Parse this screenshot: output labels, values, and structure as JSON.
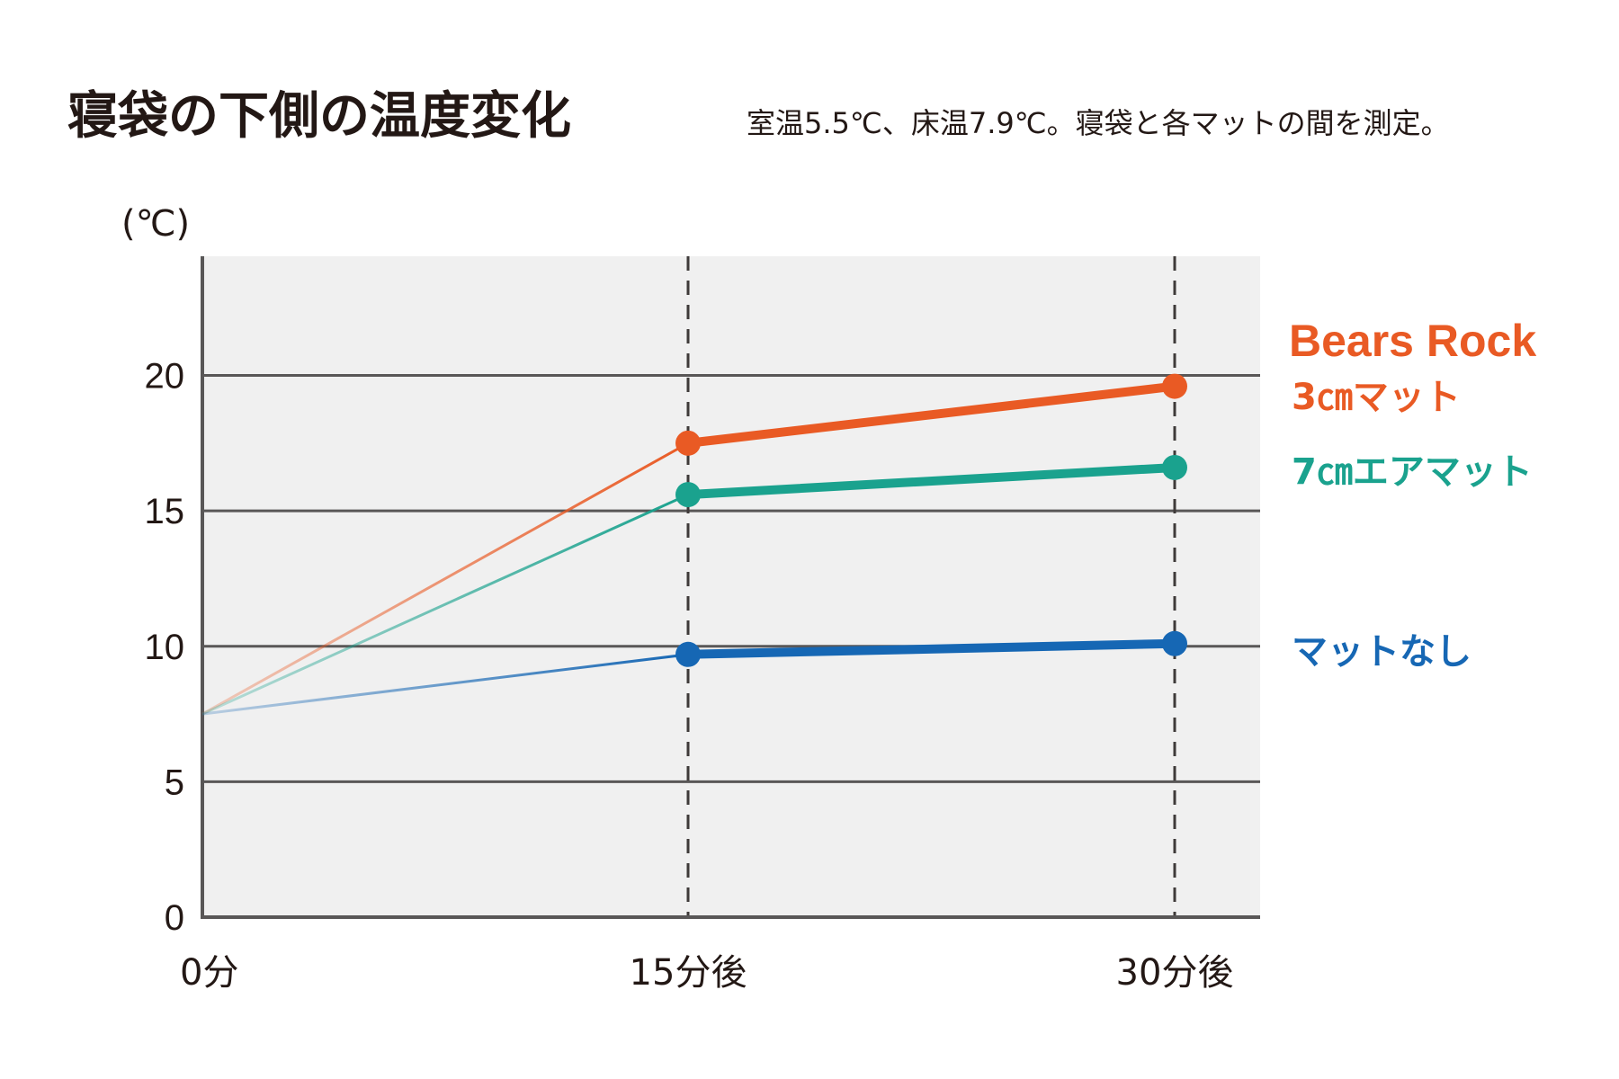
{
  "chart_data": {
    "type": "line",
    "title": "寝袋の下側の温度変化",
    "subtitle": "室温5.5℃、床温7.9℃。寝袋と各マットの間を測定。",
    "ylabel": "(℃)",
    "xlabel": "",
    "categories": [
      "0分",
      "15分後",
      "30分後"
    ],
    "yticks": [
      0,
      5,
      10,
      15,
      20
    ],
    "ylim": [
      0,
      24.4
    ],
    "grid": "horizontal",
    "legend_position": "right",
    "series": [
      {
        "name": "Bears Rock",
        "name_line2": "3㎝マット",
        "color": "#e95a24",
        "values": [
          7.5,
          17.5,
          19.6
        ]
      },
      {
        "name": "7㎝エアマット",
        "color": "#1aa28e",
        "values": [
          7.5,
          15.6,
          16.6
        ]
      },
      {
        "name": "マットなし",
        "color": "#1667b4",
        "values": [
          7.5,
          9.7,
          10.1
        ]
      }
    ]
  }
}
